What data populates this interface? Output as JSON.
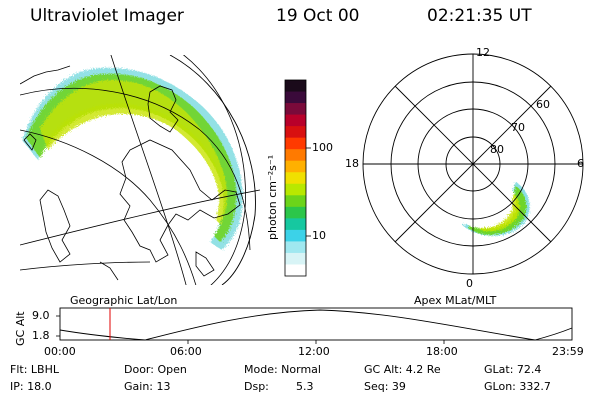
{
  "header": {
    "title": "Ultraviolet Imager",
    "date": "19 Oct 00",
    "time": "02:21:35 UT"
  },
  "colorbar": {
    "label": "photon cm⁻²s⁻¹",
    "ticks": [
      "100",
      "10"
    ],
    "colors": [
      "#1a0a1a",
      "#3a0a3a",
      "#7a0a3a",
      "#b8002a",
      "#d81010",
      "#ff3a00",
      "#ff7a00",
      "#ffb000",
      "#f0e000",
      "#b8e800",
      "#6cd41a",
      "#2cc64a",
      "#16c8a0",
      "#3cd2e8",
      "#a0e8f0",
      "#d8f4f6",
      "#ffffff"
    ]
  },
  "left_panel": {
    "caption": "Geographic Lat/Lon"
  },
  "right_panel": {
    "caption": "Apex MLat/MLT",
    "mlt_labels": {
      "top": "12",
      "bottom": "0",
      "left": "18",
      "right": "6"
    },
    "lat_labels": [
      "60",
      "70",
      "80"
    ]
  },
  "timeline": {
    "axis_label": "GC Alt",
    "ymax": "9.0",
    "ymin": "1.8",
    "ticks": [
      "00:00",
      "06:00",
      "12:00",
      "18:00",
      "23:59"
    ],
    "marker_time": "02:21"
  },
  "info": {
    "flt": "Flt: LBHL",
    "ip": "IP: 18.0",
    "door": "Door: Open",
    "gain": "Gain: 13",
    "mode": "Mode: Normal",
    "dsp_label": "Dsp:",
    "dsp_value": "5.3",
    "gc_alt": "GC Alt: 4.2 Re",
    "seq": "Seq: 39",
    "glat": "GLat: 72.4",
    "glon": "GLon: 332.7"
  },
  "colors": {
    "aurora_outer": "#3cc8d0",
    "aurora_mid": "#6cd41a",
    "aurora_core": "#c8e400",
    "marker": "#e00000"
  }
}
